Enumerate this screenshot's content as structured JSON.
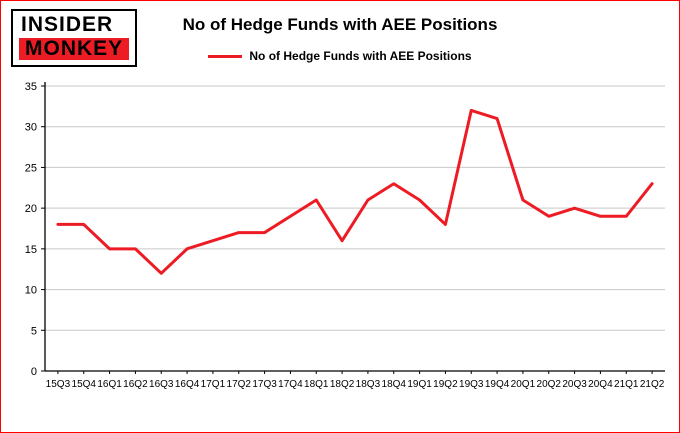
{
  "header": {
    "logo_line1": "INSIDER",
    "logo_line2": "MONKEY",
    "title": "No of Hedge Funds with AEE Positions",
    "legend_label": "No of Hedge Funds with AEE Positions"
  },
  "colors": {
    "accent": "#ed1c24",
    "grid": "#c9c9c9",
    "axis": "#000000",
    "border": "#ff0000",
    "text": "#000000"
  },
  "chart_data": {
    "type": "line",
    "title": "No of Hedge Funds with AEE Positions",
    "legend": "No of Hedge Funds with AEE Positions",
    "legend_position": "top-center",
    "grid": true,
    "xlabel": "",
    "ylabel": "",
    "ylim": [
      0,
      35
    ],
    "yticks": [
      0,
      5,
      10,
      15,
      20,
      25,
      30,
      35
    ],
    "line_color": "#ed1c24",
    "categories": [
      "15Q3",
      "15Q4",
      "16Q1",
      "16Q2",
      "16Q3",
      "16Q4",
      "17Q1",
      "17Q2",
      "17Q3",
      "17Q4",
      "18Q1",
      "18Q2",
      "18Q3",
      "18Q4",
      "19Q1",
      "19Q2",
      "19Q3",
      "19Q4",
      "20Q1",
      "20Q2",
      "20Q3",
      "20Q4",
      "21Q1",
      "21Q2"
    ],
    "values": [
      18,
      18,
      15,
      15,
      12,
      15,
      16,
      17,
      17,
      19,
      21,
      16,
      21,
      23,
      21,
      18,
      32,
      31,
      21,
      19,
      20,
      19,
      19,
      23
    ]
  }
}
